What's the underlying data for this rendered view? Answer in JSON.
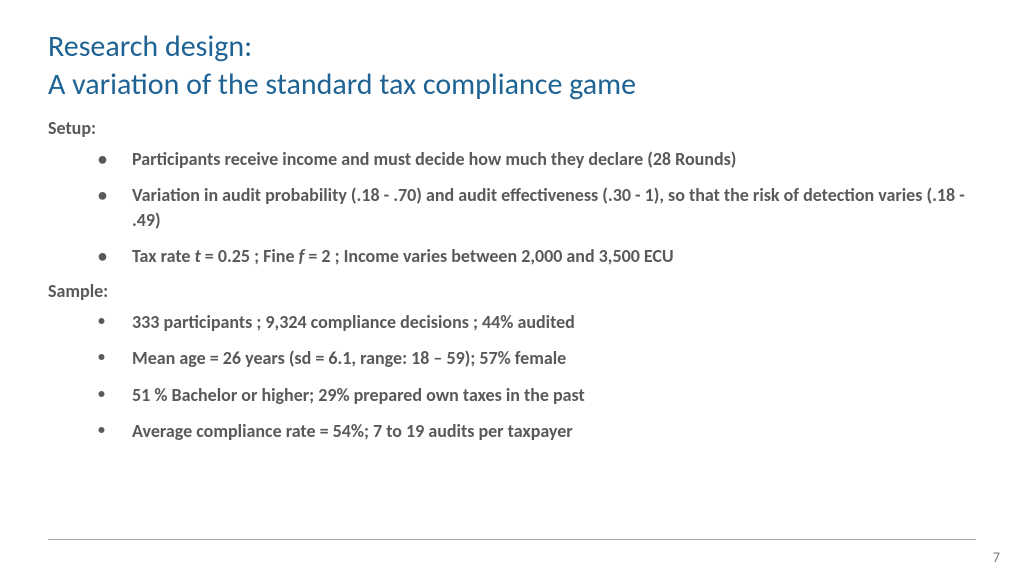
{
  "colors": {
    "title": "#1f6394",
    "body": "#595959",
    "divider": "#a6a6a6",
    "pagenum": "#808080",
    "background": "#ffffff"
  },
  "title": {
    "line1": "Research design:",
    "line2": "A variation of the standard tax compliance game"
  },
  "setup": {
    "label": "Setup:",
    "items": [
      "Participants receive income and must decide how much they declare (28 Rounds)",
      "Variation in audit probability (.18 - .70) and audit effectiveness (.30 - 1), so that the risk of detection varies (.18 - .49)",
      "Tax rate t = 0.25 ; Fine f = 2 ; Income varies between 2,000 and 3,500 ECU"
    ]
  },
  "sample": {
    "label": "Sample:",
    "items": [
      "333 participants ; 9,324 compliance decisions ; 44% audited",
      "Mean age = 26 years (sd = 6.1, range: 18 – 59); 57% female",
      "51 % Bachelor or higher; 29% prepared own taxes in the past",
      "Average compliance rate = 54%; 7 to 19 audits per taxpayer"
    ]
  },
  "page_number": "7"
}
